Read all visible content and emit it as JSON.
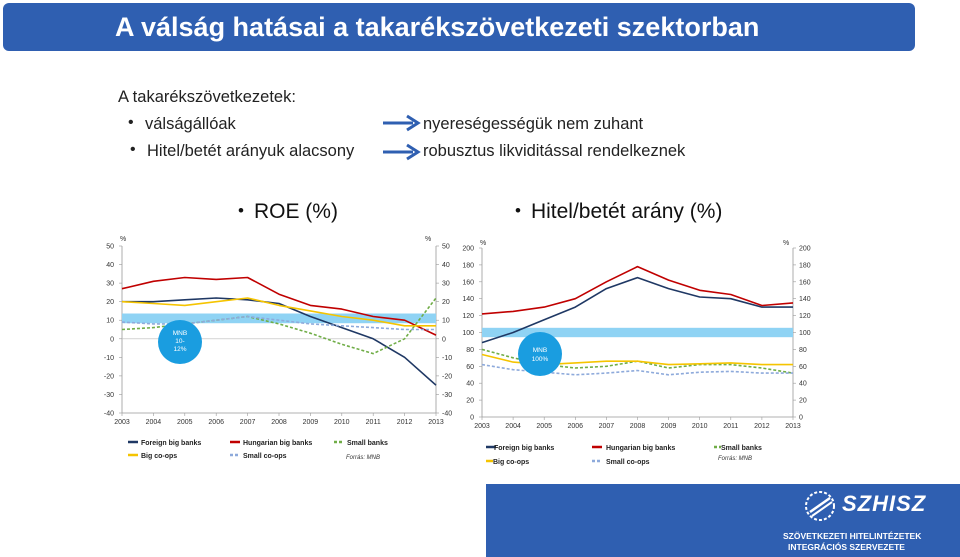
{
  "slide": {
    "title": "A válság hatásai a takarékszövetkezeti szektorban",
    "intro": "A takarékszövetkezetek:",
    "points": [
      {
        "left": "válságállóak",
        "right": "nyereségességük nem zuhant"
      },
      {
        "left": "Hitel/betét arányuk alacsony",
        "right": "robusztus likviditással rendelkeznek"
      }
    ],
    "colors": {
      "title_bar": "#2f5fb1",
      "arrow": "#2f5fb1",
      "band": "#8fd3f4",
      "bubble": "#1a9de0"
    }
  },
  "charts_labels": {
    "roe_title": "ROE (%)",
    "ratio_title": "Hitel/betét arány (%)",
    "roe_bubble": [
      "MNB",
      "10-",
      "12%"
    ],
    "ratio_bubble": [
      "MNB",
      "100%"
    ],
    "pct": "%",
    "source": "Forrás: MNB",
    "legend": {
      "foreign": "Foreign big banks",
      "hungarian": "Hungarian big banks",
      "small": "Small banks",
      "bigcoops": "Big co-ops",
      "smallcoops": "Small co-ops"
    }
  },
  "chart_data": [
    {
      "type": "line",
      "title": "ROE (%)",
      "x": [
        2003,
        2004,
        2005,
        2006,
        2007,
        2008,
        2009,
        2010,
        2011,
        2012,
        2013
      ],
      "ylim": [
        -40,
        50
      ],
      "yticks": [
        -40,
        -30,
        -20,
        -10,
        0,
        10,
        20,
        30,
        40,
        50
      ],
      "band": [
        10,
        12
      ],
      "series": [
        {
          "name": "Foreign big banks",
          "color": "#1f3864",
          "style": "solid",
          "values": [
            20,
            20,
            21,
            22,
            21,
            19,
            12,
            6,
            0,
            -10,
            -25
          ]
        },
        {
          "name": "Hungarian big banks",
          "color": "#c00000",
          "style": "solid",
          "values": [
            27,
            31,
            33,
            32,
            33,
            24,
            18,
            16,
            12,
            10,
            2
          ]
        },
        {
          "name": "Small banks",
          "color": "#70ad47",
          "style": "dashed",
          "values": [
            5,
            6,
            8,
            10,
            12,
            8,
            3,
            -3,
            -8,
            0,
            22
          ]
        },
        {
          "name": "Big co-ops",
          "color": "#f5c400",
          "style": "solid",
          "values": [
            20,
            19,
            18,
            20,
            22,
            18,
            15,
            12,
            10,
            7,
            7
          ]
        },
        {
          "name": "Small co-ops",
          "color": "#8eaadb",
          "style": "dashed",
          "values": [
            9,
            8,
            8,
            10,
            12,
            10,
            8,
            7,
            6,
            5,
            5
          ]
        }
      ]
    },
    {
      "type": "line",
      "title": "Hitel/betét arány (%)",
      "x": [
        2003,
        2004,
        2005,
        2006,
        2007,
        2008,
        2009,
        2010,
        2011,
        2012,
        2013
      ],
      "ylim": [
        0,
        200
      ],
      "yticks": [
        0,
        20,
        40,
        60,
        80,
        100,
        120,
        140,
        160,
        180,
        200
      ],
      "band": [
        98,
        102
      ],
      "series": [
        {
          "name": "Foreign big banks",
          "color": "#1f3864",
          "style": "solid",
          "values": [
            88,
            100,
            115,
            130,
            152,
            165,
            152,
            142,
            140,
            130,
            130
          ]
        },
        {
          "name": "Hungarian big banks",
          "color": "#c00000",
          "style": "solid",
          "values": [
            122,
            125,
            130,
            140,
            160,
            178,
            162,
            150,
            145,
            132,
            135
          ]
        },
        {
          "name": "Small banks",
          "color": "#70ad47",
          "style": "dashed",
          "values": [
            80,
            70,
            62,
            58,
            60,
            66,
            58,
            62,
            62,
            58,
            52
          ]
        },
        {
          "name": "Big co-ops",
          "color": "#f5c400",
          "style": "solid",
          "values": [
            74,
            65,
            62,
            64,
            66,
            66,
            62,
            63,
            64,
            62,
            62
          ]
        },
        {
          "name": "Small co-ops",
          "color": "#8eaadb",
          "style": "dashed",
          "values": [
            62,
            56,
            53,
            50,
            52,
            55,
            50,
            53,
            54,
            52,
            52
          ]
        }
      ]
    }
  ],
  "logo": {
    "brand": "SZHISZ",
    "line1": "SZÖVETKEZETI HITELINTÉZETEK",
    "line2": "INTEGRÁCIÓS SZERVEZETE"
  }
}
